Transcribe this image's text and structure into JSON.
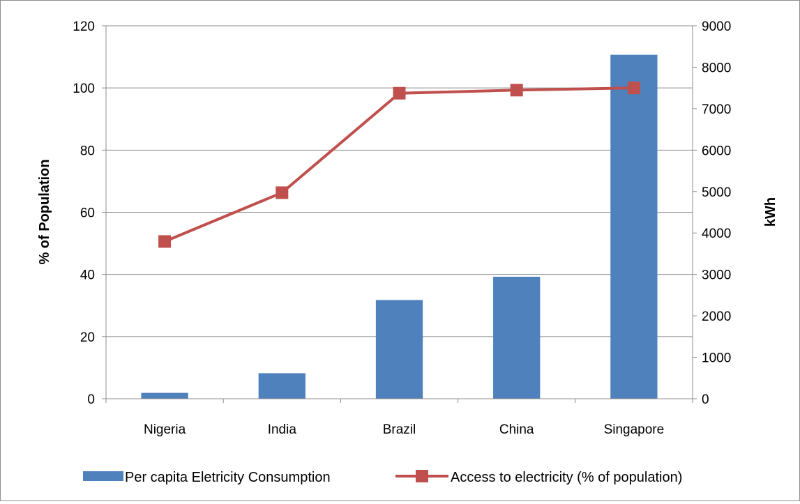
{
  "chart_data": {
    "type": "bar+line",
    "title": "",
    "categories": [
      "Nigeria",
      "India",
      "Brazil",
      "China",
      "Singapore"
    ],
    "series": [
      {
        "name": "Per capita Eletricity Consumption",
        "type": "bar",
        "axis": "right",
        "values": [
          142,
          616,
          2383,
          2944,
          8300
        ],
        "color": "#4f81bd"
      },
      {
        "name": "Access to electricity (% of population)",
        "type": "line",
        "axis": "left",
        "values": [
          50.6,
          66.3,
          98.3,
          99.3,
          100
        ],
        "color": "#c0504d",
        "marker": "square"
      }
    ],
    "y_left": {
      "label": "% of Population",
      "min": 0,
      "max": 120,
      "ticks": [
        "0",
        "20",
        "40",
        "60",
        "80",
        "100",
        "120"
      ]
    },
    "y_right": {
      "label": "kWh",
      "min": 0,
      "max": 9000,
      "ticks": [
        "0",
        "1000",
        "2000",
        "3000",
        "4000",
        "5000",
        "6000",
        "7000",
        "8000",
        "9000"
      ]
    },
    "grid": true,
    "legend_position": "bottom"
  }
}
